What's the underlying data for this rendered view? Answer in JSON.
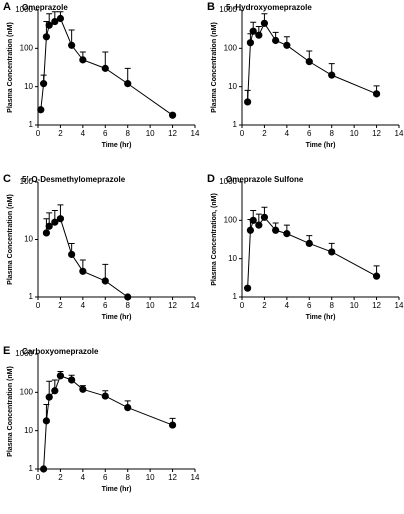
{
  "chart_data": [
    {
      "type": "line",
      "label": "A",
      "title": "Omeprazole",
      "xlabel": "Time (hr)",
      "ylabel": "Plasma Concentration (nM)",
      "log_y": true,
      "color": "#000000",
      "x": [
        0.25,
        0.5,
        0.75,
        1,
        1.5,
        2,
        3,
        4,
        6,
        8,
        12
      ],
      "values": [
        2.5,
        12,
        200,
        400,
        500,
        600,
        120,
        50,
        30,
        12,
        1.8
      ],
      "errors": [
        0,
        8,
        300,
        400,
        400,
        300,
        180,
        30,
        50,
        18,
        0
      ],
      "xlim": [
        0,
        14
      ],
      "xticks": [
        0,
        2,
        4,
        6,
        8,
        10,
        12,
        14
      ],
      "ylim": [
        1,
        1000
      ],
      "yticks": [
        1,
        10,
        100,
        1000
      ]
    },
    {
      "type": "line",
      "label": "B",
      "title": "5 -Hydroxyomeprazole",
      "xlabel": "Time (hr)",
      "ylabel": "Plasma Concentration (nM)",
      "log_y": true,
      "color": "#000000",
      "x": [
        0.5,
        0.75,
        1,
        1.5,
        2,
        3,
        4,
        6,
        8,
        12
      ],
      "values": [
        4,
        140,
        280,
        220,
        450,
        160,
        120,
        45,
        20,
        6.5
      ],
      "errors": [
        4,
        100,
        200,
        150,
        350,
        100,
        80,
        40,
        20,
        4
      ],
      "xlim": [
        0,
        14
      ],
      "xticks": [
        0,
        2,
        4,
        6,
        8,
        10,
        12,
        14
      ],
      "ylim": [
        1,
        1000
      ],
      "yticks": [
        1,
        10,
        100,
        1000
      ]
    },
    {
      "type": "line",
      "label": "C",
      "title": "5’-O-Desmethylomeprazole",
      "xlabel": "Time (hr)",
      "ylabel": "Plasma Concentration (nM)",
      "log_y": true,
      "color": "#000000",
      "x": [
        0.75,
        1,
        1.5,
        2,
        3,
        4,
        6,
        8
      ],
      "values": [
        13,
        17,
        20,
        23,
        5.5,
        2.8,
        1.9,
        1
      ],
      "errors": [
        10,
        12,
        12,
        17,
        3,
        1.6,
        1.8,
        0
      ],
      "xlim": [
        0,
        14
      ],
      "xticks": [
        0,
        2,
        4,
        6,
        8,
        10,
        12,
        14
      ],
      "ylim": [
        1,
        100
      ],
      "yticks": [
        1,
        10,
        100
      ]
    },
    {
      "type": "line",
      "label": "D",
      "title": "Omeprazole Sulfone",
      "xlabel": "Time (hr)",
      "ylabel": "Plasma Concentration, (nM)",
      "log_y": true,
      "color": "#000000",
      "x": [
        0.5,
        0.75,
        1,
        1.5,
        2,
        3,
        4,
        6,
        8,
        12
      ],
      "values": [
        1.7,
        55,
        100,
        75,
        120,
        55,
        45,
        25,
        15,
        3.5
      ],
      "errors": [
        0,
        50,
        80,
        70,
        100,
        30,
        30,
        15,
        10,
        3
      ],
      "xlim": [
        0,
        14
      ],
      "xticks": [
        0,
        2,
        4,
        6,
        8,
        10,
        12,
        14
      ],
      "ylim": [
        1,
        1000
      ],
      "yticks": [
        1,
        10,
        100,
        1000
      ]
    },
    {
      "type": "line",
      "label": "E",
      "title": "Carboxyomeprazole",
      "xlabel": "Time (hr)",
      "ylabel": "Plasma Concentration (nM)",
      "log_y": true,
      "color": "#000000",
      "x": [
        0.5,
        0.75,
        1,
        1.5,
        2,
        3,
        4,
        6,
        8,
        12
      ],
      "values": [
        1,
        18,
        75,
        110,
        270,
        210,
        120,
        80,
        40,
        14
      ],
      "errors": [
        0,
        30,
        120,
        100,
        80,
        70,
        30,
        30,
        20,
        7
      ],
      "xlim": [
        0,
        14
      ],
      "xticks": [
        0,
        2,
        4,
        6,
        8,
        10,
        12,
        14
      ],
      "ylim": [
        1,
        1000
      ],
      "yticks": [
        1,
        10,
        100,
        1000
      ]
    }
  ]
}
